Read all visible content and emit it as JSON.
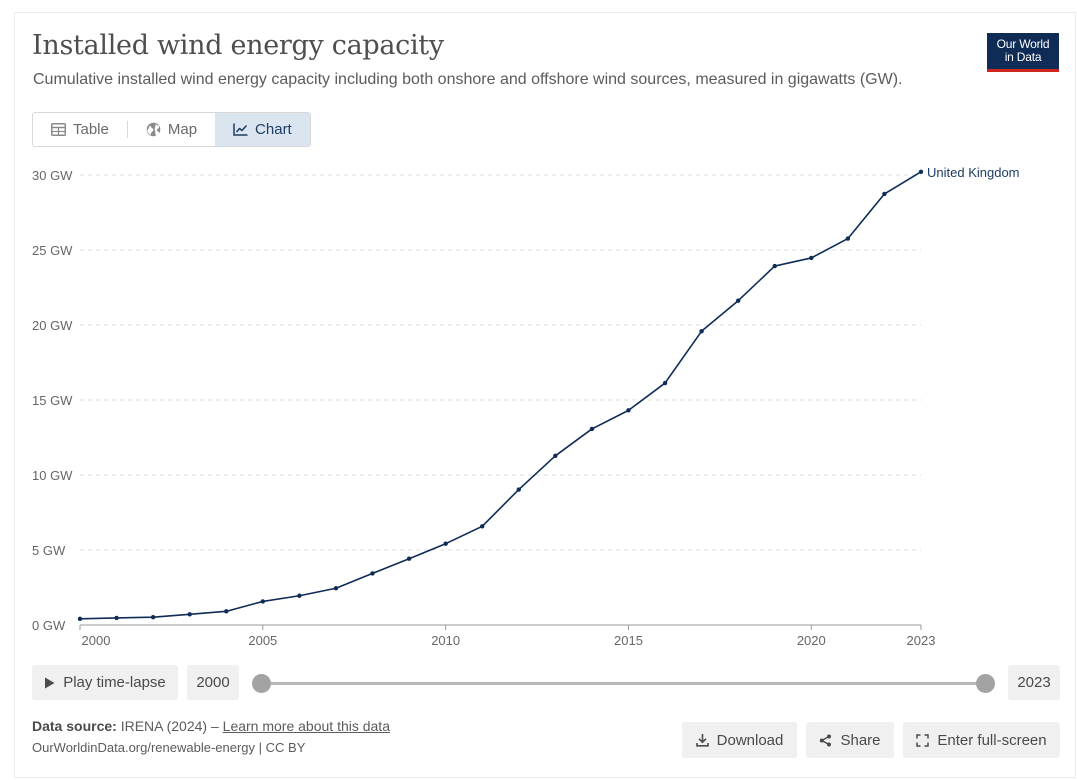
{
  "header": {
    "title": "Installed wind energy capacity",
    "subtitle": "Cumulative installed wind energy capacity including both onshore and offshore wind sources, measured in gigawatts (GW).",
    "logo_line1": "Our World",
    "logo_line2": "in Data"
  },
  "tabs": [
    {
      "label": "Table",
      "icon": "table-icon"
    },
    {
      "label": "Map",
      "icon": "globe-icon"
    },
    {
      "label": "Chart",
      "icon": "line-chart-icon",
      "active": true
    }
  ],
  "chart_data": {
    "type": "line",
    "title": "Installed wind energy capacity",
    "xlabel": "",
    "ylabel": "",
    "x": [
      2000,
      2001,
      2002,
      2003,
      2004,
      2005,
      2006,
      2007,
      2008,
      2009,
      2010,
      2011,
      2012,
      2013,
      2014,
      2015,
      2016,
      2017,
      2018,
      2019,
      2020,
      2021,
      2022,
      2023
    ],
    "series": [
      {
        "name": "United Kingdom",
        "color": "#0f2c56",
        "values": [
          0.41,
          0.47,
          0.52,
          0.71,
          0.91,
          1.57,
          1.95,
          2.45,
          3.44,
          4.42,
          5.42,
          6.58,
          9.03,
          11.28,
          13.07,
          14.31,
          16.13,
          19.59,
          21.62,
          23.93,
          24.47,
          25.76,
          28.74,
          30.21
        ]
      }
    ],
    "xlim": [
      2000,
      2023
    ],
    "ylim": [
      0,
      30
    ],
    "x_ticks": [
      2000,
      2005,
      2010,
      2015,
      2020,
      2023
    ],
    "y_ticks": [
      0,
      5,
      10,
      15,
      20,
      25,
      30
    ],
    "y_tick_labels": [
      "0 GW",
      "5 GW",
      "10 GW",
      "15 GW",
      "20 GW",
      "25 GW",
      "30 GW"
    ],
    "grid": "horizontal-dashed",
    "legend": "inline-end-label"
  },
  "timeline": {
    "play_label": "Play time-lapse",
    "start_year": "2000",
    "end_year": "2023",
    "range": [
      2000,
      2023
    ]
  },
  "footer": {
    "source_label": "Data source:",
    "source_text": "IRENA (2024) –",
    "learn_more": "Learn more about this data",
    "license": "OurWorldinData.org/renewable-energy | CC BY",
    "download_label": "Download",
    "share_label": "Share",
    "fullscreen_label": "Enter full-screen"
  }
}
